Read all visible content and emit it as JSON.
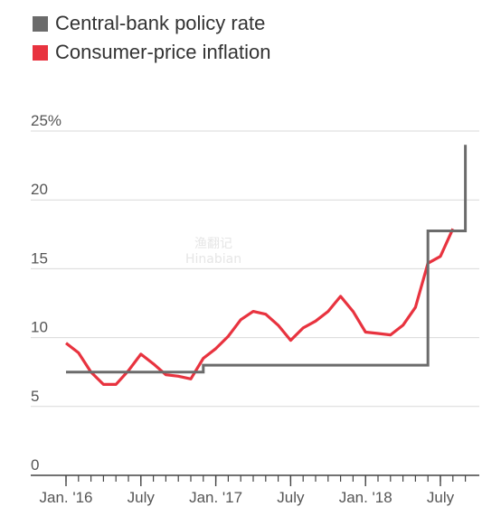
{
  "chart_data": {
    "type": "line",
    "legend": {
      "placement": "top-left",
      "items": [
        {
          "label": "Central-bank policy rate",
          "color": "#6b6b6b"
        },
        {
          "label": "Consumer-price inflation",
          "color": "#e8333f"
        }
      ]
    },
    "ylim": [
      0,
      25
    ],
    "y_ticks": [
      {
        "value": 25,
        "label": "25%"
      },
      {
        "value": 20,
        "label": "20"
      },
      {
        "value": 15,
        "label": "15"
      },
      {
        "value": 10,
        "label": "10"
      },
      {
        "value": 5,
        "label": "5"
      },
      {
        "value": 0,
        "label": "0"
      }
    ],
    "x_ticks": [
      {
        "x": "2016-01",
        "label": "Jan. '16"
      },
      {
        "x": "2016-07",
        "label": "July"
      },
      {
        "x": "2017-01",
        "label": "Jan. '17"
      },
      {
        "x": "2017-07",
        "label": "July"
      },
      {
        "x": "2018-01",
        "label": "Jan. '18"
      },
      {
        "x": "2018-07",
        "label": "July"
      }
    ],
    "xlim": [
      "2016-01",
      "2018-09"
    ],
    "grid": "horizontal",
    "series": [
      {
        "name": "Consumer-price inflation",
        "color": "#e8333f",
        "points": [
          [
            "2016-01",
            9.6
          ],
          [
            "2016-02",
            8.9
          ],
          [
            "2016-03",
            7.5
          ],
          [
            "2016-04",
            6.6
          ],
          [
            "2016-05",
            6.6
          ],
          [
            "2016-06",
            7.6
          ],
          [
            "2016-07",
            8.8
          ],
          [
            "2016-08",
            8.1
          ],
          [
            "2016-09",
            7.3
          ],
          [
            "2016-10",
            7.2
          ],
          [
            "2016-11",
            7.0
          ],
          [
            "2016-12",
            8.5
          ],
          [
            "2017-01",
            9.2
          ],
          [
            "2017-02",
            10.1
          ],
          [
            "2017-03",
            11.3
          ],
          [
            "2017-04",
            11.9
          ],
          [
            "2017-05",
            11.7
          ],
          [
            "2017-06",
            10.9
          ],
          [
            "2017-07",
            9.8
          ],
          [
            "2017-08",
            10.7
          ],
          [
            "2017-09",
            11.2
          ],
          [
            "2017-10",
            11.9
          ],
          [
            "2017-11",
            13.0
          ],
          [
            "2017-12",
            11.9
          ],
          [
            "2018-01",
            10.4
          ],
          [
            "2018-02",
            10.3
          ],
          [
            "2018-03",
            10.2
          ],
          [
            "2018-04",
            10.9
          ],
          [
            "2018-05",
            12.2
          ],
          [
            "2018-06",
            15.4
          ],
          [
            "2018-07",
            15.9
          ],
          [
            "2018-08",
            17.9
          ]
        ]
      },
      {
        "name": "Central-bank policy rate",
        "color": "#6b6b6b",
        "step": true,
        "points": [
          [
            "2016-01",
            7.5
          ],
          [
            "2016-12",
            7.5
          ],
          [
            "2016-12",
            8.0
          ],
          [
            "2018-06",
            8.0
          ],
          [
            "2018-06",
            16.5
          ],
          [
            "2018-06",
            17.75
          ],
          [
            "2018-09",
            17.75
          ],
          [
            "2018-09",
            24.0
          ]
        ]
      }
    ]
  },
  "watermark": {
    "line1": "渔翻记",
    "line2": "Hinabian"
  }
}
